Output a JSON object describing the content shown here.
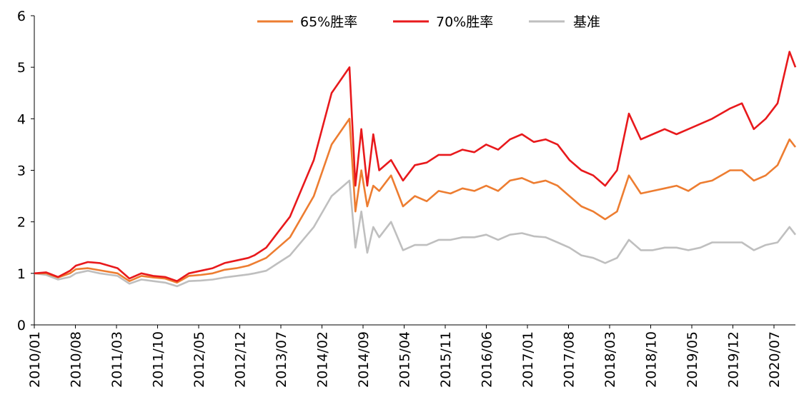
{
  "chart_data": {
    "type": "line",
    "title": "",
    "xlabel": "",
    "ylabel": "",
    "ylim": [
      0,
      6
    ],
    "yticks": [
      "0",
      "1",
      "2",
      "3",
      "4",
      "5",
      "6"
    ],
    "x_tick_labels": [
      "2010/01",
      "2010/08",
      "2011/03",
      "2011/10",
      "2012/05",
      "2012/12",
      "2013/07",
      "2014/02",
      "2014/09",
      "2015/04",
      "2015/11",
      "2016/06",
      "2017/01",
      "2017/08",
      "2018/03",
      "2018/10",
      "2019/05",
      "2019/12",
      "2020/07"
    ],
    "legend_position": "top-center",
    "x_points": [
      0,
      2,
      4,
      6,
      7,
      9,
      11,
      14,
      16,
      18,
      20,
      22,
      24,
      26,
      28,
      30,
      32,
      34,
      36,
      37,
      39,
      41,
      43,
      47,
      50,
      53,
      54,
      55,
      56,
      57,
      58,
      60,
      62,
      64,
      66,
      68,
      70,
      72,
      74,
      76,
      78,
      80,
      82,
      84,
      86,
      88,
      90,
      92,
      94,
      96,
      98,
      100,
      102,
      104,
      106,
      108,
      110,
      112,
      114,
      117,
      119,
      121,
      123,
      125,
      127,
      128
    ],
    "series": [
      {
        "name": "65%胜率",
        "color": "#ED7D31",
        "values": [
          1.0,
          1.0,
          0.92,
          1.0,
          1.08,
          1.1,
          1.06,
          1.0,
          0.85,
          0.95,
          0.92,
          0.9,
          0.82,
          0.95,
          0.97,
          1.0,
          1.07,
          1.1,
          1.15,
          1.2,
          1.3,
          1.5,
          1.7,
          2.5,
          3.5,
          4.0,
          2.2,
          3.0,
          2.3,
          2.7,
          2.6,
          2.9,
          2.3,
          2.5,
          2.4,
          2.6,
          2.55,
          2.65,
          2.6,
          2.7,
          2.6,
          2.8,
          2.85,
          2.75,
          2.8,
          2.7,
          2.5,
          2.3,
          2.2,
          2.05,
          2.2,
          2.9,
          2.55,
          2.6,
          2.65,
          2.7,
          2.6,
          2.75,
          2.8,
          3.0,
          3.0,
          2.8,
          2.9,
          3.1,
          3.6,
          3.45
        ]
      },
      {
        "name": "70%胜率",
        "color": "#E8191C",
        "values": [
          1.0,
          1.02,
          0.93,
          1.05,
          1.15,
          1.22,
          1.2,
          1.1,
          0.9,
          1.0,
          0.95,
          0.93,
          0.85,
          1.0,
          1.05,
          1.1,
          1.2,
          1.25,
          1.3,
          1.35,
          1.5,
          1.8,
          2.1,
          3.2,
          4.5,
          5.0,
          2.7,
          3.8,
          2.7,
          3.7,
          3.0,
          3.2,
          2.8,
          3.1,
          3.15,
          3.3,
          3.3,
          3.4,
          3.35,
          3.5,
          3.4,
          3.6,
          3.7,
          3.55,
          3.6,
          3.5,
          3.2,
          3.0,
          2.9,
          2.7,
          3.0,
          4.1,
          3.6,
          3.7,
          3.8,
          3.7,
          3.8,
          3.9,
          4.0,
          4.2,
          4.3,
          3.8,
          4.0,
          4.3,
          5.3,
          5.0
        ]
      },
      {
        "name": "基准",
        "color": "#BFBFBF",
        "values": [
          1.0,
          0.97,
          0.88,
          0.93,
          1.0,
          1.05,
          1.0,
          0.95,
          0.8,
          0.88,
          0.85,
          0.82,
          0.75,
          0.85,
          0.86,
          0.88,
          0.92,
          0.95,
          0.98,
          1.0,
          1.05,
          1.2,
          1.35,
          1.9,
          2.5,
          2.8,
          1.5,
          2.2,
          1.4,
          1.9,
          1.7,
          2.0,
          1.45,
          1.55,
          1.55,
          1.65,
          1.65,
          1.7,
          1.7,
          1.75,
          1.65,
          1.75,
          1.78,
          1.72,
          1.7,
          1.6,
          1.5,
          1.35,
          1.3,
          1.2,
          1.3,
          1.65,
          1.45,
          1.45,
          1.5,
          1.5,
          1.45,
          1.5,
          1.6,
          1.6,
          1.6,
          1.45,
          1.55,
          1.6,
          1.9,
          1.75
        ]
      }
    ]
  }
}
